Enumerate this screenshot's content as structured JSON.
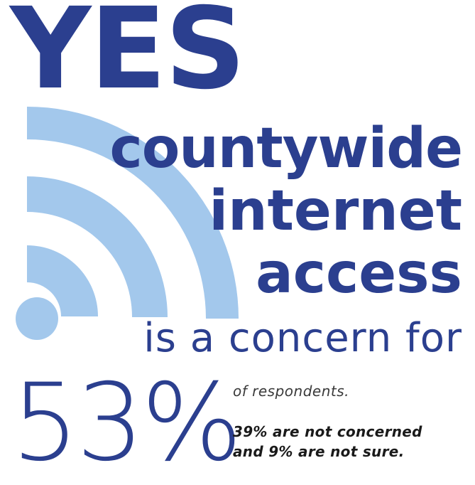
{
  "colors": {
    "primary": "#2b3f8f",
    "wifi": "#a3c8ec",
    "text": "#1a1a1a"
  },
  "icon": "wifi-icon",
  "headline": {
    "yes": "YES",
    "line1": "countywide",
    "line2": "internet",
    "line3": "access",
    "line4": "is a concern for"
  },
  "stat": {
    "percent": "53%",
    "label": "of respondents.",
    "note_line1": "39% are not concerned",
    "note_line2": "and 9% are not sure."
  }
}
